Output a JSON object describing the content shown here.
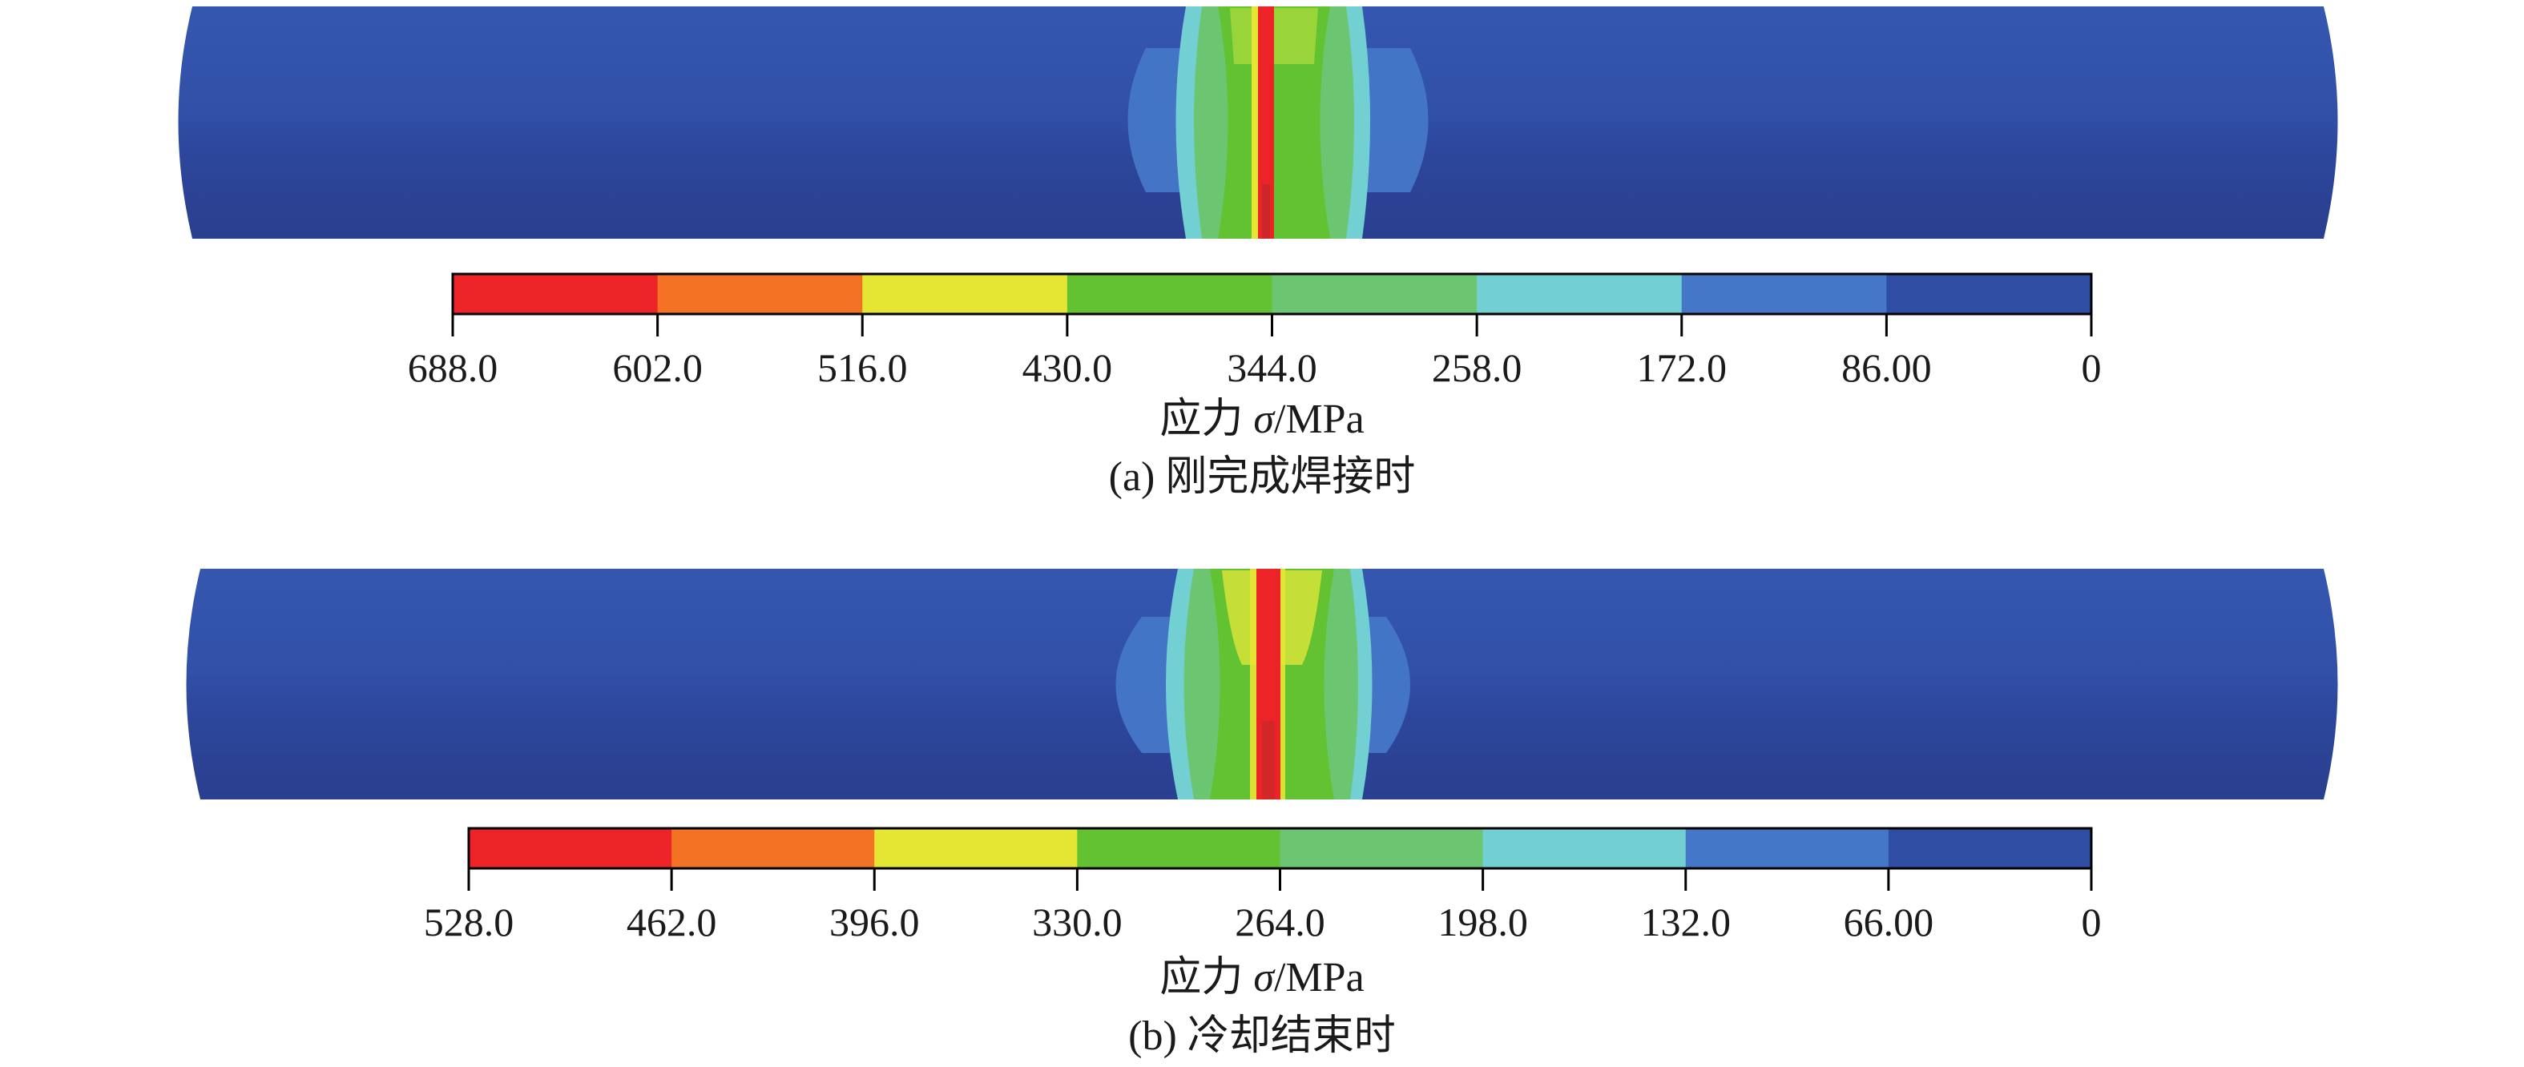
{
  "panels": [
    {
      "id": "a",
      "caption": "(a) 刚完成焊接时",
      "colorbar": {
        "axis_label_prefix": "应力 ",
        "axis_label_symbol": "σ",
        "axis_label_suffix": "/MPa",
        "tick_labels": [
          "688.0",
          "602.0",
          "516.0",
          "430.0",
          "344.0",
          "258.0",
          "172.0",
          "86.00",
          "0"
        ],
        "colors": [
          "#ec2427",
          "#f47224",
          "#e5e534",
          "#63c232",
          "#6cc671",
          "#72d0d3",
          "#4577c8",
          "#2f4ea3"
        ]
      }
    },
    {
      "id": "b",
      "caption": "(b) 冷却结束时",
      "colorbar": {
        "axis_label_prefix": "应力 ",
        "axis_label_symbol": "σ",
        "axis_label_suffix": "/MPa",
        "tick_labels": [
          "528.0",
          "462.0",
          "396.0",
          "330.0",
          "264.0",
          "198.0",
          "132.0",
          "66.00",
          "0"
        ],
        "colors": [
          "#ec2427",
          "#f47224",
          "#e5e534",
          "#63c232",
          "#6cc671",
          "#72d0d3",
          "#4577c8",
          "#2f4ea3"
        ]
      }
    }
  ]
}
